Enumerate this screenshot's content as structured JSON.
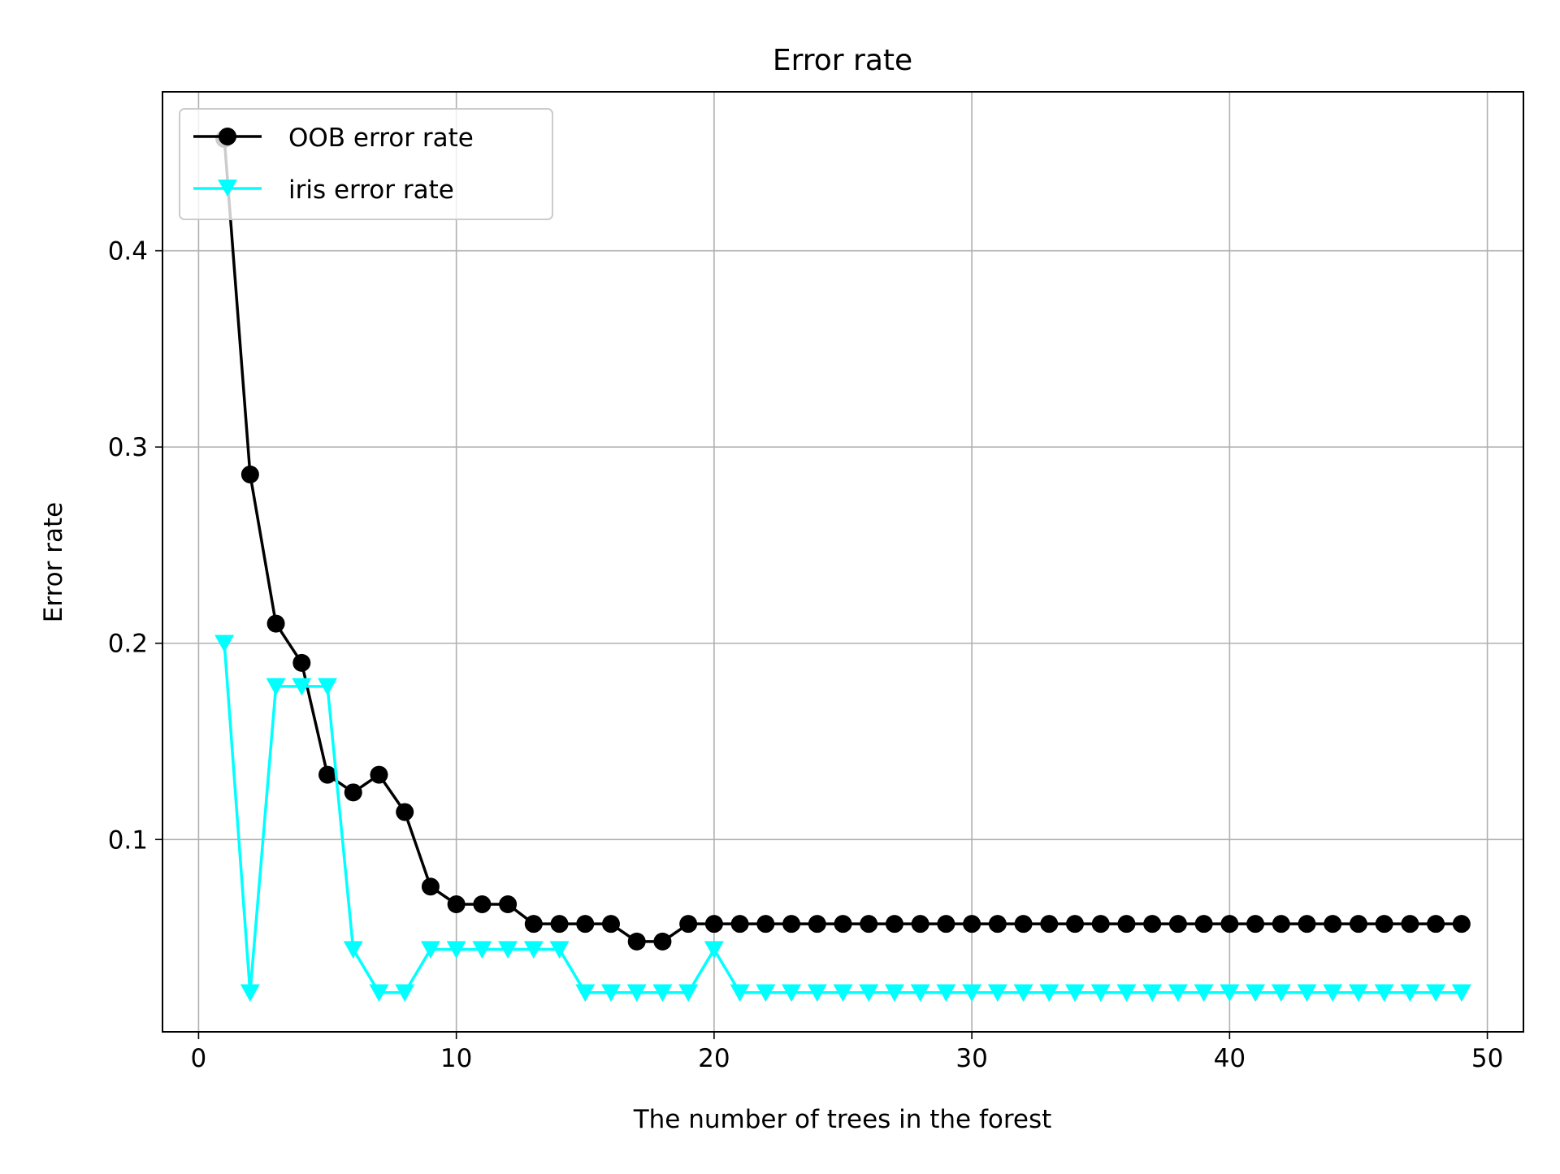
{
  "chart_data": {
    "type": "line",
    "title": "Error rate",
    "xlabel": "The number of trees in the forest",
    "ylabel": "Error rate",
    "xlim": [
      -1.4,
      51.4
    ],
    "ylim": [
      0.002,
      0.481
    ],
    "xticks": [
      0,
      10,
      20,
      30,
      40,
      50
    ],
    "xtick_labels": [
      "0",
      "10",
      "20",
      "30",
      "40",
      "50"
    ],
    "yticks": [
      0.1,
      0.2,
      0.3,
      0.4
    ],
    "ytick_labels": [
      "0.1",
      "0.2",
      "0.3",
      "0.4"
    ],
    "grid": true,
    "legend_position": "upper-left",
    "x": [
      1,
      2,
      3,
      4,
      5,
      6,
      7,
      8,
      9,
      10,
      11,
      12,
      13,
      14,
      15,
      16,
      17,
      18,
      19,
      20,
      21,
      22,
      23,
      24,
      25,
      26,
      27,
      28,
      29,
      30,
      31,
      32,
      33,
      34,
      35,
      36,
      37,
      38,
      39,
      40,
      41,
      42,
      43,
      44,
      45,
      46,
      47,
      48,
      49
    ],
    "series": [
      {
        "name": "OOB error rate",
        "color": "#000000",
        "marker": "circle",
        "values": [
          0.457,
          0.286,
          0.21,
          0.19,
          0.133,
          0.124,
          0.133,
          0.114,
          0.076,
          0.067,
          0.067,
          0.067,
          0.057,
          0.057,
          0.057,
          0.057,
          0.048,
          0.048,
          0.057,
          0.057,
          0.057,
          0.057,
          0.057,
          0.057,
          0.057,
          0.057,
          0.057,
          0.057,
          0.057,
          0.057,
          0.057,
          0.057,
          0.057,
          0.057,
          0.057,
          0.057,
          0.057,
          0.057,
          0.057,
          0.057,
          0.057,
          0.057,
          0.057,
          0.057,
          0.057,
          0.057,
          0.057,
          0.057,
          0.057
        ]
      },
      {
        "name": "iris error rate",
        "color": "#00ffff",
        "marker": "triangle-down",
        "values": [
          0.2,
          0.022,
          0.178,
          0.178,
          0.178,
          0.044,
          0.022,
          0.022,
          0.044,
          0.044,
          0.044,
          0.044,
          0.044,
          0.044,
          0.022,
          0.022,
          0.022,
          0.022,
          0.022,
          0.044,
          0.022,
          0.022,
          0.022,
          0.022,
          0.022,
          0.022,
          0.022,
          0.022,
          0.022,
          0.022,
          0.022,
          0.022,
          0.022,
          0.022,
          0.022,
          0.022,
          0.022,
          0.022,
          0.022,
          0.022,
          0.022,
          0.022,
          0.022,
          0.022,
          0.022,
          0.022,
          0.022,
          0.022,
          0.022
        ]
      }
    ]
  }
}
